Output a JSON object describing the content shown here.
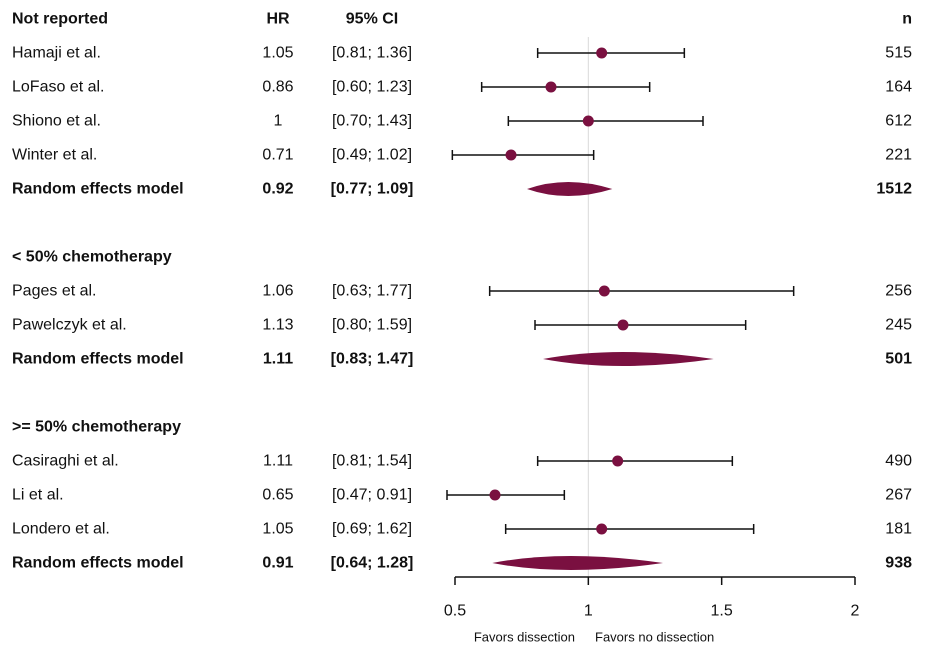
{
  "chart_data": {
    "type": "forest",
    "column_headers": {
      "study": "Not reported",
      "hr": "HR",
      "ci": "95% CI",
      "n": "n"
    },
    "groups": [
      {
        "label": "Not reported",
        "studies": [
          {
            "name": "Hamaji et al.",
            "hr_label": "1.05",
            "ci_label": "[0.81; 1.36]",
            "n": "515",
            "hr": 1.05,
            "lower": 0.81,
            "upper": 1.36
          },
          {
            "name": "LoFaso et al.",
            "hr_label": "0.86",
            "ci_label": "[0.60; 1.23]",
            "n": "164",
            "hr": 0.86,
            "lower": 0.6,
            "upper": 1.23
          },
          {
            "name": "Shiono et al.",
            "hr_label": "1",
            "ci_label": "[0.70; 1.43]",
            "n": "612",
            "hr": 1.0,
            "lower": 0.7,
            "upper": 1.43
          },
          {
            "name": "Winter et al.",
            "hr_label": "0.71",
            "ci_label": "[0.49; 1.02]",
            "n": "221",
            "hr": 0.71,
            "lower": 0.49,
            "upper": 1.02
          }
        ],
        "pooled": {
          "name": "Random effects model",
          "hr_label": "0.92",
          "ci_label": "[0.77; 1.09]",
          "n": "1512",
          "hr": 0.92,
          "lower": 0.77,
          "upper": 1.09
        }
      },
      {
        "label": "< 50% chemotherapy",
        "studies": [
          {
            "name": "Pages et al.",
            "hr_label": "1.06",
            "ci_label": "[0.63; 1.77]",
            "n": "256",
            "hr": 1.06,
            "lower": 0.63,
            "upper": 1.77
          },
          {
            "name": "Pawelczyk et al.",
            "hr_label": "1.13",
            "ci_label": "[0.80; 1.59]",
            "n": "245",
            "hr": 1.13,
            "lower": 0.8,
            "upper": 1.59
          }
        ],
        "pooled": {
          "name": "Random effects model",
          "hr_label": "1.11",
          "ci_label": "[0.83; 1.47]",
          "n": "501",
          "hr": 1.11,
          "lower": 0.83,
          "upper": 1.47
        }
      },
      {
        "label": ">= 50% chemotherapy",
        "studies": [
          {
            "name": "Casiraghi et al.",
            "hr_label": "1.11",
            "ci_label": "[0.81; 1.54]",
            "n": "490",
            "hr": 1.11,
            "lower": 0.81,
            "upper": 1.54
          },
          {
            "name": "Li et al.",
            "hr_label": "0.65",
            "ci_label": "[0.47; 0.91]",
            "n": "267",
            "hr": 0.65,
            "lower": 0.47,
            "upper": 0.91
          },
          {
            "name": "Londero et al.",
            "hr_label": "1.05",
            "ci_label": "[0.69; 1.62]",
            "n": "181",
            "hr": 1.05,
            "lower": 0.69,
            "upper": 1.62
          }
        ],
        "pooled": {
          "name": "Random effects model",
          "hr_label": "0.91",
          "ci_label": "[0.64; 1.28]",
          "n": "938",
          "hr": 0.91,
          "lower": 0.64,
          "upper": 1.28
        }
      }
    ],
    "x_axis": {
      "min": 0.5,
      "max": 2,
      "ticks": [
        "0.5",
        "1",
        "1.5",
        "2"
      ],
      "reference_line": 1
    },
    "footer_labels": {
      "left": "Favors dissection",
      "right": "Favors no dissection"
    },
    "colors": {
      "marker": "#7a1040",
      "whisker": "#111111",
      "reference": "#d9d9d9"
    }
  }
}
